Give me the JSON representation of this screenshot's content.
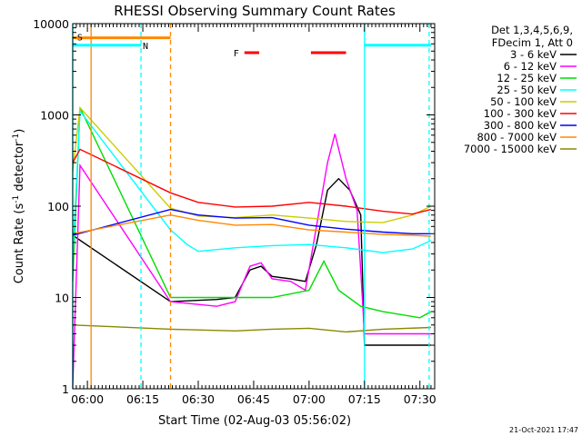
{
  "chart_data": {
    "type": "line",
    "title": "RHESSI Observing Summary Count Rates",
    "xlabel": "Start Time (02-Aug-03 05:56:02)",
    "ylabel_main": "Count Rate (s",
    "ylabel_sup1": "-1",
    "ylabel_mid": " detector",
    "ylabel_sup2": "-1",
    "ylabel_end": ")",
    "ylim": [
      1,
      10000
    ],
    "y_scale": "log",
    "xlim": [
      "05:56:02",
      "07:34:00"
    ],
    "x_ticks": [
      "06:00",
      "06:15",
      "06:30",
      "06:45",
      "07:00",
      "07:15",
      "07:30"
    ],
    "y_ticks": [
      "1",
      "10",
      "100",
      "1000",
      "10000"
    ],
    "legend_header": [
      "Det 1,3,4,5,6,9,",
      "FDecim 1, Att 0"
    ],
    "legend_position": "right",
    "series": [
      {
        "name": "3 - 6 keV",
        "color": "#000000",
        "points": [
          [
            "05:56:00",
            48
          ],
          [
            "06:22:30",
            9
          ],
          [
            "06:35",
            9.5
          ],
          [
            "06:40",
            10
          ],
          [
            "06:44",
            20
          ],
          [
            "06:47",
            22
          ],
          [
            "06:50",
            17
          ],
          [
            "06:55",
            16
          ],
          [
            "06:59",
            15
          ],
          [
            "07:02",
            38
          ],
          [
            "07:05",
            150
          ],
          [
            "07:08",
            200
          ],
          [
            "07:11",
            150
          ],
          [
            "07:14",
            80
          ],
          [
            "07:15",
            3
          ],
          [
            "07:33",
            3
          ]
        ]
      },
      {
        "name": "6 - 12 keV",
        "color": "#ff00ff",
        "points": [
          [
            "05:56:00",
            1
          ],
          [
            "05:58",
            280
          ],
          [
            "06:22:30",
            9
          ],
          [
            "06:35",
            8
          ],
          [
            "06:40",
            9
          ],
          [
            "06:44",
            22
          ],
          [
            "06:47",
            24
          ],
          [
            "06:50",
            16
          ],
          [
            "06:55",
            15
          ],
          [
            "06:59",
            12
          ],
          [
            "07:02",
            60
          ],
          [
            "07:05",
            300
          ],
          [
            "07:07",
            620
          ],
          [
            "07:10",
            200
          ],
          [
            "07:13",
            90
          ],
          [
            "07:15",
            4
          ],
          [
            "07:33",
            4
          ]
        ]
      },
      {
        "name": "12 - 25 keV",
        "color": "#00dd00",
        "points": [
          [
            "05:56:00",
            15
          ],
          [
            "05:58",
            1200
          ],
          [
            "06:22:30",
            10
          ],
          [
            "06:40",
            10
          ],
          [
            "06:50",
            10
          ],
          [
            "07:00",
            12
          ],
          [
            "07:04",
            25
          ],
          [
            "07:08",
            12
          ],
          [
            "07:14",
            8
          ],
          [
            "07:20",
            7
          ],
          [
            "07:30",
            6
          ],
          [
            "07:33",
            7
          ]
        ]
      },
      {
        "name": "25 - 50 keV",
        "color": "#00ffff",
        "points": [
          [
            "05:56:00",
            26
          ],
          [
            "05:58",
            1100
          ],
          [
            "06:22:30",
            55
          ],
          [
            "06:27",
            38
          ],
          [
            "06:30",
            32
          ],
          [
            "06:40",
            35
          ],
          [
            "06:50",
            37
          ],
          [
            "07:00",
            38
          ],
          [
            "07:10",
            35
          ],
          [
            "07:20",
            31
          ],
          [
            "07:28",
            34
          ],
          [
            "07:33",
            42
          ]
        ]
      },
      {
        "name": "50 - 100 keV",
        "color": "#cccc00",
        "points": [
          [
            "05:56:00",
            240
          ],
          [
            "05:58",
            1200
          ],
          [
            "06:22:30",
            95
          ],
          [
            "06:30",
            78
          ],
          [
            "06:40",
            75
          ],
          [
            "06:50",
            80
          ],
          [
            "07:00",
            74
          ],
          [
            "07:10",
            68
          ],
          [
            "07:20",
            66
          ],
          [
            "07:28",
            80
          ],
          [
            "07:33",
            100
          ]
        ]
      },
      {
        "name": "100 - 300 keV",
        "color": "#ff0000",
        "points": [
          [
            "05:56:00",
            300
          ],
          [
            "05:58",
            420
          ],
          [
            "06:22:30",
            140
          ],
          [
            "06:30",
            110
          ],
          [
            "06:40",
            98
          ],
          [
            "06:50",
            100
          ],
          [
            "07:00",
            110
          ],
          [
            "07:10",
            100
          ],
          [
            "07:20",
            88
          ],
          [
            "07:28",
            82
          ],
          [
            "07:33",
            92
          ]
        ]
      },
      {
        "name": "300 - 800 keV",
        "color": "#0000ff",
        "points": [
          [
            "05:56:00",
            48
          ],
          [
            "06:22:30",
            92
          ],
          [
            "06:30",
            80
          ],
          [
            "06:40",
            74
          ],
          [
            "06:50",
            75
          ],
          [
            "07:00",
            62
          ],
          [
            "07:10",
            56
          ],
          [
            "07:20",
            52
          ],
          [
            "07:28",
            50
          ],
          [
            "07:33",
            50
          ]
        ]
      },
      {
        "name": "800 - 7000 keV",
        "color": "#ff8800",
        "points": [
          [
            "05:56:00",
            50
          ],
          [
            "06:22:30",
            80
          ],
          [
            "06:30",
            70
          ],
          [
            "06:40",
            62
          ],
          [
            "06:50",
            63
          ],
          [
            "07:00",
            55
          ],
          [
            "07:10",
            52
          ],
          [
            "07:20",
            49
          ],
          [
            "07:28",
            48
          ],
          [
            "07:33",
            47
          ]
        ]
      },
      {
        "name": "7000 - 15000 keV",
        "color": "#888800",
        "points": [
          [
            "05:56:00",
            5
          ],
          [
            "06:22:30",
            4.5
          ],
          [
            "06:40",
            4.3
          ],
          [
            "06:50",
            4.5
          ],
          [
            "07:00",
            4.6
          ],
          [
            "07:10",
            4.2
          ],
          [
            "07:20",
            4.5
          ],
          [
            "07:33",
            4.7
          ]
        ]
      }
    ],
    "orbit_bars": [
      {
        "label": "S",
        "color": "#ff8800",
        "start": "05:56:00",
        "end": "06:22:30",
        "level": 7000
      },
      {
        "label": "N",
        "color": "#00ffff",
        "start": "05:56:00",
        "end": "06:14:30",
        "level": 5800
      },
      {
        "label": "",
        "color": "#00ffff",
        "start": "07:15:00",
        "end": "07:33:00",
        "level": 5800
      }
    ],
    "flare_marker": {
      "label": "F",
      "color": "#ff0000",
      "segments": [
        [
          "06:42:30",
          "06:46:30"
        ],
        [
          "07:00:30",
          "07:10:00"
        ]
      ],
      "level": 4800
    },
    "vertical_markers": [
      {
        "time": "06:01:00",
        "color": "#ff8800",
        "style": "solid"
      },
      {
        "time": "05:56:00",
        "color": "#00ffff",
        "style": "solid"
      },
      {
        "time": "06:14:30",
        "color": "#00ffff",
        "style": "dashed"
      },
      {
        "time": "06:22:30",
        "color": "#ff8800",
        "style": "dashed"
      },
      {
        "time": "07:15:00",
        "color": "#00ffff",
        "style": "solid"
      },
      {
        "time": "07:32:30",
        "color": "#00ffff",
        "style": "dashed"
      }
    ],
    "footer_date": "21-Oct-2021 17:47"
  }
}
